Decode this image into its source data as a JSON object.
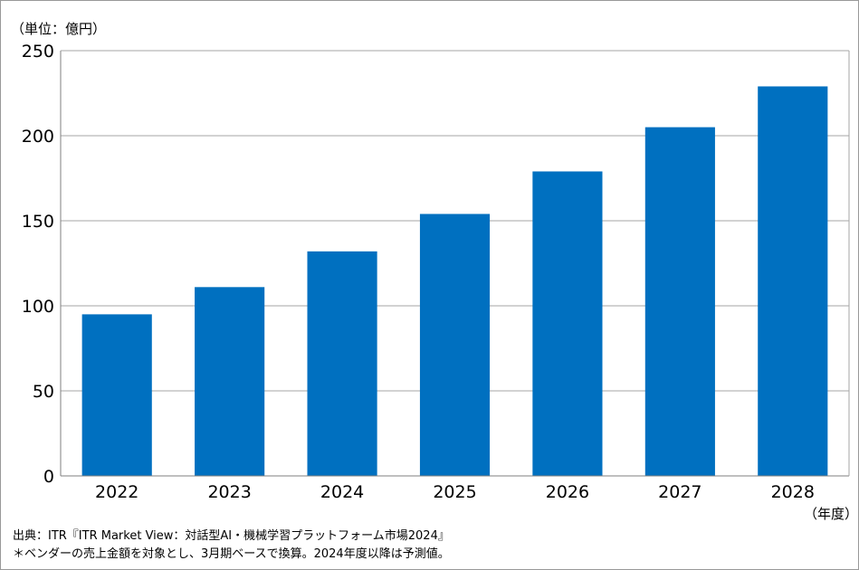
{
  "chart_data": {
    "type": "bar",
    "unit_label": "（単位：億円）",
    "x_unit_label": "（年度）",
    "categories": [
      "2022",
      "2023",
      "2024",
      "2025",
      "2026",
      "2027",
      "2028"
    ],
    "values": [
      95,
      111,
      132,
      154,
      179,
      205,
      229
    ],
    "ylim": [
      0,
      250
    ],
    "yticks": [
      0,
      50,
      100,
      150,
      200,
      250
    ],
    "grid": true,
    "bar_color": "#0070c0"
  },
  "footnotes": {
    "source": "出典：ITR『ITR Market View：対話型AI・機械学習プラットフォーム市場2024』",
    "note": "＊ベンダーの売上金額を対象とし、3月期ベースで換算。2024年度以降は予測値。"
  }
}
